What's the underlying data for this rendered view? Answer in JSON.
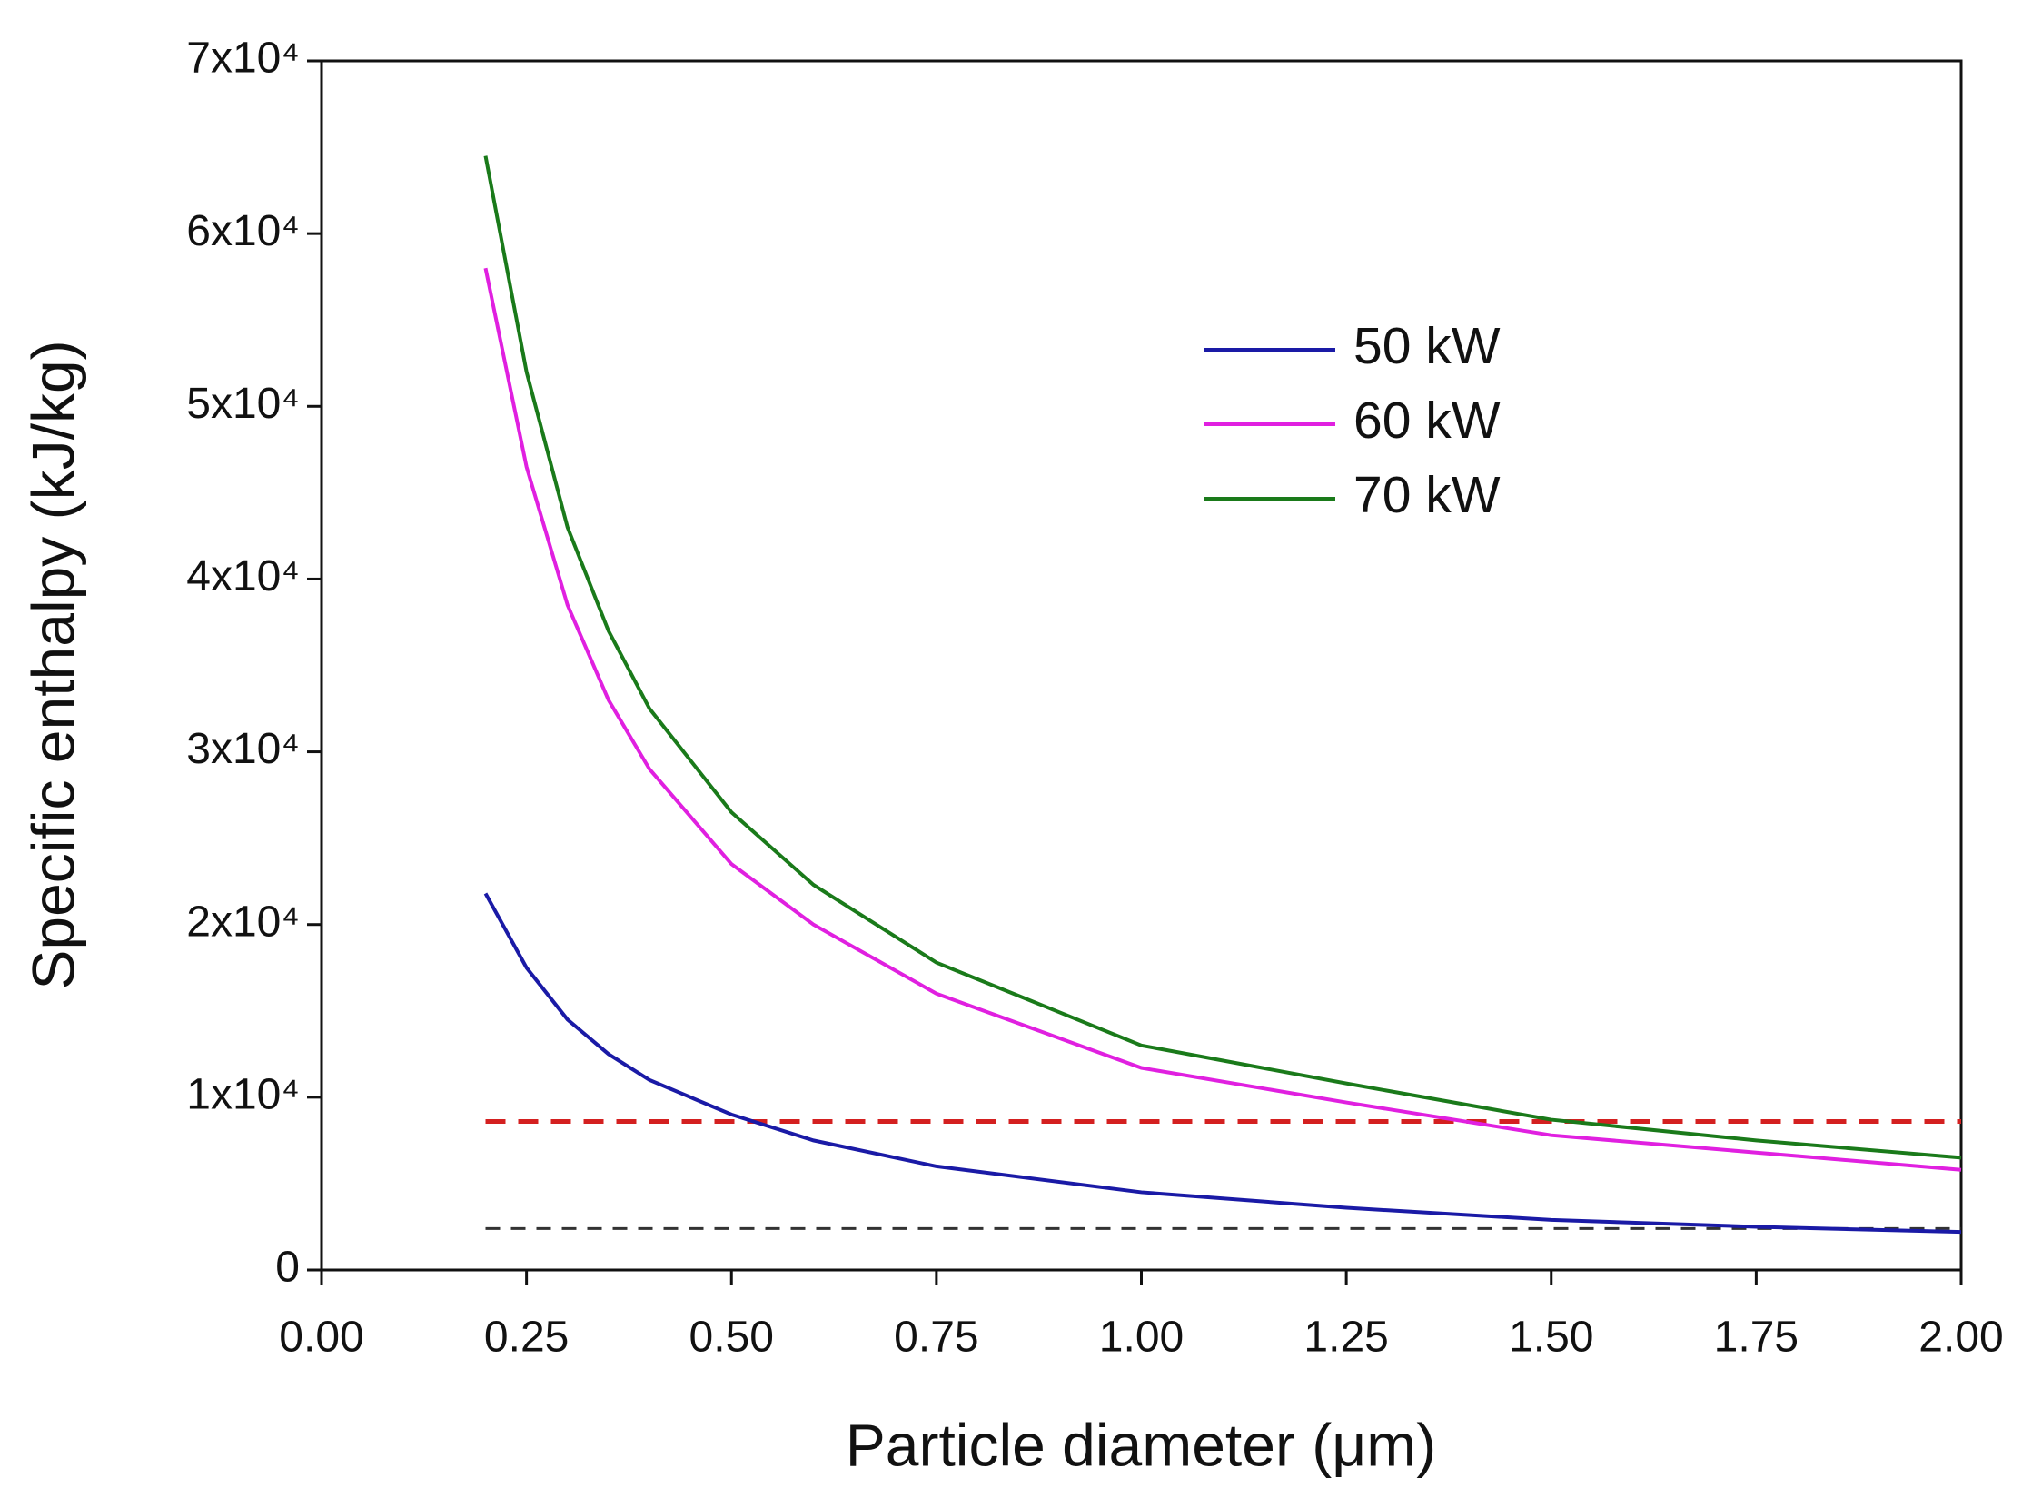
{
  "chart_data": {
    "type": "line",
    "x_label": "Particle diameter (μm)",
    "y_label": "Specific enthalpy (kJ/kg)",
    "x": [
      0.2,
      0.25,
      0.3,
      0.35,
      0.4,
      0.5,
      0.6,
      0.75,
      1.0,
      1.25,
      1.5,
      1.75,
      2.0
    ],
    "series": [
      {
        "name": "50 kW",
        "color": "#1a1aa6",
        "values": [
          21800,
          17500,
          14500,
          12500,
          11000,
          9000,
          7500,
          6000,
          4500,
          3600,
          2900,
          2500,
          2200
        ]
      },
      {
        "name": "60 kW",
        "color": "#e020e0",
        "values": [
          58000,
          46500,
          38500,
          33000,
          29000,
          23500,
          20000,
          16000,
          11700,
          9700,
          7800,
          6800,
          5800
        ]
      },
      {
        "name": "70 kW",
        "color": "#1a7a1a",
        "values": [
          64500,
          52000,
          43000,
          37000,
          32500,
          26500,
          22300,
          17800,
          13000,
          10800,
          8700,
          7500,
          6500
        ]
      }
    ],
    "hlines": [
      {
        "y": 8600,
        "x": [
          0.2,
          2.0
        ],
        "color": "#d42020",
        "dash": true
      },
      {
        "y": 2400,
        "x": [
          0.2,
          2.0
        ],
        "color": "#333333",
        "dash": true
      }
    ],
    "xlim": [
      0,
      2
    ],
    "ylim": [
      0,
      70000
    ],
    "xticks": [
      {
        "value": 0,
        "label": "0.00"
      },
      {
        "value": 0.25,
        "label": "0.25"
      },
      {
        "value": 0.5,
        "label": "0.50"
      },
      {
        "value": 0.75,
        "label": "0.75"
      },
      {
        "value": 1,
        "label": "1.00"
      },
      {
        "value": 1.25,
        "label": "1.25"
      },
      {
        "value": 1.5,
        "label": "1.50"
      },
      {
        "value": 1.75,
        "label": "1.75"
      },
      {
        "value": 2,
        "label": "2.00"
      }
    ],
    "yticks": [
      0,
      {
        "value": 10000,
        "label": "1x10⁴"
      },
      {
        "value": 20000,
        "label": "2x10⁴"
      },
      {
        "value": 30000,
        "label": "3x10⁴"
      },
      {
        "value": 40000,
        "label": "4x10⁴"
      },
      {
        "value": 50000,
        "label": "5x10⁴"
      },
      {
        "value": 60000,
        "label": "6x10⁴"
      },
      {
        "value": 70000,
        "label": "7x10⁴"
      }
    ],
    "grid": false
  }
}
